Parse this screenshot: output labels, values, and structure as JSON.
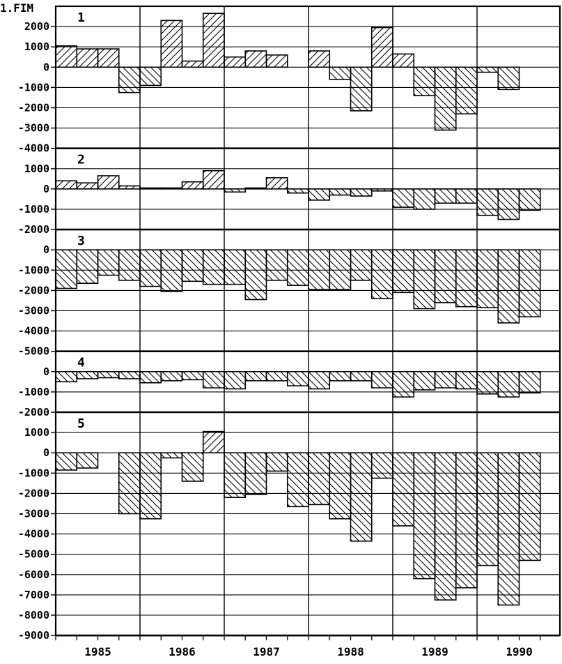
{
  "chart_data": {
    "type": "bar",
    "unit_label": "1.FIM",
    "x_labels": [
      "1985",
      "1986",
      "1987",
      "1988",
      "1989",
      "1990"
    ],
    "x_quarters": [
      "1985 Q1",
      "1985 Q2",
      "1985 Q3",
      "1985 Q4",
      "1986 Q1",
      "1986 Q2",
      "1986 Q3",
      "1986 Q4",
      "1987 Q1",
      "1987 Q2",
      "1987 Q3",
      "1987 Q4",
      "1988 Q1",
      "1988 Q2",
      "1988 Q3",
      "1988 Q4",
      "1989 Q1",
      "1989 Q2",
      "1989 Q3",
      "1989 Q4",
      "1990 Q1",
      "1990 Q2",
      "1990 Q3"
    ],
    "grid": true,
    "panels": [
      {
        "label": "1",
        "ylim": [
          -4000,
          3000
        ],
        "yticks": [
          2000,
          1000,
          0,
          -1000,
          -2000,
          -3000,
          -4000
        ],
        "values": [
          1050,
          900,
          900,
          -1250,
          -900,
          2300,
          300,
          2650,
          500,
          800,
          600,
          0,
          800,
          -600,
          -2150,
          1950,
          650,
          -1400,
          -3100,
          -2300,
          -250,
          -1100,
          0
        ]
      },
      {
        "label": "2",
        "ylim": [
          -2000,
          2000
        ],
        "yticks": [
          1000,
          0,
          -1000,
          -2000
        ],
        "values": [
          400,
          300,
          650,
          150,
          50,
          50,
          350,
          900,
          -150,
          50,
          550,
          -200,
          -550,
          -300,
          -350,
          -100,
          -900,
          -1000,
          -700,
          -700,
          -1300,
          -1500,
          -1050
        ]
      },
      {
        "label": "3",
        "ylim": [
          -5000,
          1000
        ],
        "yticks": [
          0,
          -1000,
          -2000,
          -3000,
          -4000,
          -5000
        ],
        "values": [
          -1900,
          -1650,
          -1250,
          -1500,
          -1800,
          -2050,
          -1550,
          -1700,
          -1700,
          -2450,
          -1500,
          -1750,
          -1950,
          -1950,
          -1500,
          -2400,
          -2100,
          -2900,
          -2600,
          -2800,
          -2850,
          -3600,
          -3300
        ]
      },
      {
        "label": "4",
        "ylim": [
          -2000,
          1000
        ],
        "yticks": [
          0,
          -1000,
          -2000
        ],
        "values": [
          -500,
          -350,
          -300,
          -350,
          -550,
          -450,
          -400,
          -800,
          -850,
          -450,
          -450,
          -700,
          -850,
          -450,
          -450,
          -800,
          -1250,
          -900,
          -800,
          -850,
          -1100,
          -1250,
          -1050
        ]
      },
      {
        "label": "5",
        "ylim": [
          -9000,
          2000
        ],
        "yticks": [
          1000,
          0,
          -1000,
          -2000,
          -3000,
          -4000,
          -5000,
          -6000,
          -7000,
          -8000,
          -9000
        ],
        "values": [
          -850,
          -750,
          0,
          -3000,
          -3250,
          -250,
          -1400,
          1050,
          -2200,
          -2050,
          -900,
          -2650,
          -2550,
          -3250,
          -4350,
          -1250,
          -3600,
          -6200,
          -7250,
          -6650,
          -5550,
          -7500,
          -5300
        ]
      }
    ]
  }
}
